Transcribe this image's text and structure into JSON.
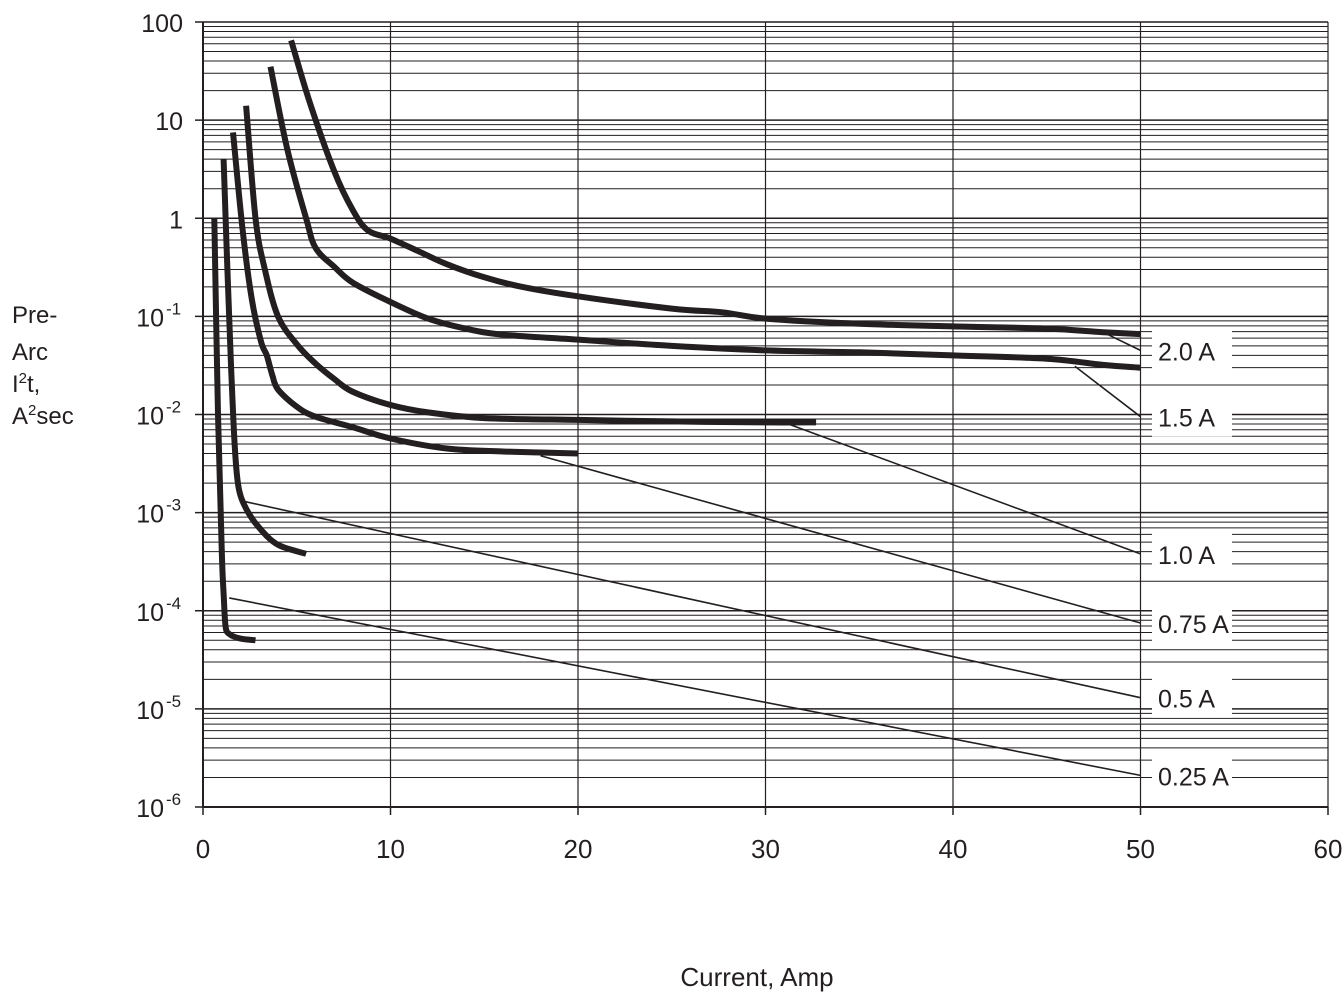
{
  "chart_data": {
    "type": "line",
    "title": "",
    "xlabel": "Current, Amp",
    "ylabel_lines": [
      "Pre-",
      "Arc",
      "I",
      "2",
      "t,",
      "A",
      "2",
      "sec"
    ],
    "xlim": [
      0,
      60
    ],
    "ylim": [
      1e-06,
      100
    ],
    "yscale": "log",
    "grid": true,
    "x_ticks": [
      "0",
      "10",
      "20",
      "30",
      "40",
      "50",
      "60"
    ],
    "y_ticks": [
      {
        "base": "100",
        "exp": ""
      },
      {
        "base": "10",
        "exp": ""
      },
      {
        "base": "1",
        "exp": ""
      },
      {
        "base": "10",
        "exp": "-1"
      },
      {
        "base": "10",
        "exp": "-2"
      },
      {
        "base": "10",
        "exp": "-3"
      },
      {
        "base": "10",
        "exp": "-4"
      },
      {
        "base": "10",
        "exp": "-5"
      },
      {
        "base": "10",
        "exp": "-6"
      }
    ],
    "series": [
      {
        "name": "2.0 A",
        "x": [
          4.7,
          5.7,
          7,
          8,
          8.8,
          10,
          11.5,
          13,
          15,
          17,
          20,
          25,
          27.7,
          30,
          35,
          40,
          45,
          48,
          50
        ],
        "y": [
          65,
          15,
          3,
          1.2,
          0.75,
          0.62,
          0.46,
          0.34,
          0.25,
          0.2,
          0.16,
          0.12,
          0.11,
          0.095,
          0.084,
          0.079,
          0.075,
          0.069,
          0.066
        ]
      },
      {
        "name": "1.5 A",
        "x": [
          3.6,
          4.5,
          5.5,
          6,
          7,
          8,
          10,
          12,
          14,
          16,
          20,
          25,
          30,
          35,
          40,
          45,
          48,
          50
        ],
        "y": [
          35,
          5,
          1,
          0.5,
          0.32,
          0.22,
          0.14,
          0.095,
          0.075,
          0.065,
          0.058,
          0.05,
          0.045,
          0.043,
          0.04,
          0.037,
          0.032,
          0.03
        ]
      },
      {
        "name": "1.0 A",
        "x": [
          2.3,
          2.8,
          3.3,
          4,
          5,
          6,
          7,
          8,
          10,
          12,
          15,
          20,
          25,
          30,
          32.7
        ],
        "y": [
          14,
          1,
          0.3,
          0.1,
          0.052,
          0.033,
          0.023,
          0.017,
          0.0125,
          0.0105,
          0.0092,
          0.0088,
          0.0085,
          0.0083,
          0.0083
        ]
      },
      {
        "name": "0.75 A",
        "x": [
          1.6,
          2.1,
          2.6,
          3.1,
          3.4,
          3.7,
          4,
          5,
          6,
          8,
          10,
          13,
          16,
          18,
          20
        ],
        "y": [
          7.5,
          0.8,
          0.15,
          0.055,
          0.04,
          0.025,
          0.018,
          0.012,
          0.0095,
          0.0074,
          0.0057,
          0.0045,
          0.0042,
          0.0041,
          0.004
        ]
      },
      {
        "name": "0.5 A",
        "x": [
          1.1,
          1.3,
          1.5,
          1.7,
          1.9,
          2.3,
          3,
          4,
          5.5
        ],
        "y": [
          4,
          0.3,
          0.03,
          0.0045,
          0.0018,
          0.0011,
          0.0007,
          0.00047,
          0.00038
        ]
      },
      {
        "name": "0.25 A",
        "x": [
          0.6,
          0.8,
          1.0,
          1.1,
          1.2,
          1.4,
          2,
          2.8
        ],
        "y": [
          1,
          0.01,
          0.0004,
          0.00015,
          7e-05,
          5.8e-05,
          5.2e-05,
          5e-05
        ]
      }
    ],
    "extrapolation_lines": [
      {
        "series": "2.0 A",
        "x": [
          48,
          50
        ],
        "y": [
          0.069,
          0.045
        ]
      },
      {
        "series": "1.5 A",
        "x": [
          46.5,
          50
        ],
        "y": [
          0.031,
          0.0095
        ]
      },
      {
        "series": "1.0 A",
        "x": [
          31,
          50
        ],
        "y": [
          0.0083,
          0.00038
        ]
      },
      {
        "series": "0.75 A",
        "x": [
          18,
          50
        ],
        "y": [
          0.0038,
          7.5e-05
        ]
      },
      {
        "series": "0.5 A",
        "x": [
          2.2,
          50
        ],
        "y": [
          0.0013,
          1.3e-05
        ]
      },
      {
        "series": "0.25 A",
        "x": [
          1.4,
          50
        ],
        "y": [
          0.000135,
          2.1e-06
        ]
      }
    ],
    "curve_labels": [
      "2.0 A",
      "1.5 A",
      "1.0 A",
      "0.75 A",
      "0.5 A",
      "0.25 A"
    ]
  }
}
